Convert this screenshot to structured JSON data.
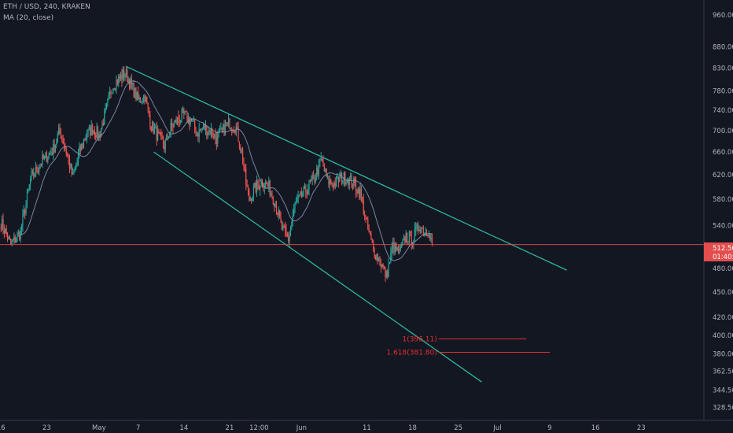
{
  "header": {
    "symbol_line": "ETH / USD, 240, KRAKEN",
    "indicator_line": "MA (20, close)"
  },
  "price_tag": {
    "price": "512.50",
    "countdown": "01:40:13"
  },
  "fib_labels": [
    "1(396.11)",
    "1.618(381.80)"
  ],
  "colors": {
    "background": "#131722",
    "up": "#26a69a",
    "down": "#ef5350",
    "ma": "#8a9bb8",
    "channel": "#2bb5a0",
    "price_line": "#e34d4d",
    "fib": "#e52e2e",
    "axis_text": "#b2b5be"
  },
  "chart_data": {
    "type": "candlestick",
    "symbol": "ETH / USD",
    "timeframe": "240",
    "exchange": "KRAKEN",
    "y_scale": "log",
    "ylim": [
      317,
      1000
    ],
    "y_ticks": [
      328.5,
      344.5,
      362.5,
      380,
      400,
      420,
      450,
      480,
      512.5,
      540,
      580,
      620,
      660,
      700,
      740,
      780,
      830,
      880,
      960
    ],
    "y_tick_labels": [
      "328.50",
      "344.50",
      "362.50",
      "380.00",
      "400.00",
      "420.00",
      "450.00",
      "480.00",
      "",
      "540.00",
      "580.00",
      "620.00",
      "660.00",
      "700.00",
      "740.00",
      "780.00",
      "830.00",
      "880.00",
      "960.00"
    ],
    "x_ticks": [
      {
        "label": "16",
        "day": -15
      },
      {
        "label": "23",
        "day": -8
      },
      {
        "label": "May",
        "day": 0
      },
      {
        "label": "7",
        "day": 6
      },
      {
        "label": "14",
        "day": 13
      },
      {
        "label": "21",
        "day": 20
      },
      {
        "label": "12:00",
        "day": 24.5
      },
      {
        "label": "Jun",
        "day": 31
      },
      {
        "label": "11",
        "day": 41
      },
      {
        "label": "18",
        "day": 48
      },
      {
        "label": "25",
        "day": 55
      },
      {
        "label": "Jul",
        "day": 61
      },
      {
        "label": "9",
        "day": 69
      },
      {
        "label": "16",
        "day": 76
      },
      {
        "label": "23",
        "day": 83
      }
    ],
    "xlim": [
      -15.15,
      92.6
    ],
    "ma_period": 20,
    "last_price": 512.5,
    "price_path": [
      [
        -15,
        545
      ],
      [
        -13.5,
        512
      ],
      [
        -12,
        530
      ],
      [
        -10.5,
        610
      ],
      [
        -9,
        640
      ],
      [
        -7,
        665
      ],
      [
        -6,
        700
      ],
      [
        -5,
        660
      ],
      [
        -4,
        615
      ],
      [
        -3,
        660
      ],
      [
        -2,
        690
      ],
      [
        -1,
        705
      ],
      [
        0,
        690
      ],
      [
        1,
        735
      ],
      [
        2,
        790
      ],
      [
        3,
        805
      ],
      [
        4,
        820
      ],
      [
        5,
        790
      ],
      [
        6,
        760
      ],
      [
        7,
        770
      ],
      [
        8,
        710
      ],
      [
        9,
        690
      ],
      [
        10,
        670
      ],
      [
        11,
        705
      ],
      [
        12,
        720
      ],
      [
        13,
        730
      ],
      [
        14,
        720
      ],
      [
        15,
        695
      ],
      [
        16,
        705
      ],
      [
        17,
        700
      ],
      [
        18,
        685
      ],
      [
        19,
        700
      ],
      [
        20,
        715
      ],
      [
        21,
        705
      ],
      [
        22,
        650
      ],
      [
        22.5,
        605
      ],
      [
        23,
        580
      ],
      [
        24,
        600
      ],
      [
        25,
        610
      ],
      [
        26,
        600
      ],
      [
        27,
        575
      ],
      [
        28,
        535
      ],
      [
        29,
        520
      ],
      [
        30,
        570
      ],
      [
        31,
        585
      ],
      [
        32,
        600
      ],
      [
        33,
        615
      ],
      [
        34,
        645
      ],
      [
        35,
        610
      ],
      [
        36,
        605
      ],
      [
        37,
        615
      ],
      [
        38,
        615
      ],
      [
        39,
        605
      ],
      [
        40,
        590
      ],
      [
        41,
        540
      ],
      [
        42,
        505
      ],
      [
        43,
        490
      ],
      [
        44,
        470
      ],
      [
        45,
        510
      ],
      [
        46,
        500
      ],
      [
        47,
        525
      ],
      [
        48,
        520
      ],
      [
        49,
        540
      ],
      [
        50,
        530
      ],
      [
        50.5,
        535
      ],
      [
        51,
        512.5
      ]
    ],
    "trendlines": [
      {
        "name": "channel-upper",
        "points": [
          [
            4.3,
            833
          ],
          [
            71.6,
            478
          ]
        ]
      },
      {
        "name": "channel-lower",
        "points": [
          [
            8.4,
            660
          ],
          [
            58.6,
            352
          ]
        ]
      },
      {
        "name": "last-price-line",
        "points": [
          [
            -15.15,
            512.5
          ],
          [
            92.6,
            512.5
          ]
        ]
      }
    ],
    "fib_levels": [
      {
        "label": "1(396.11)",
        "value": 396.11,
        "x_start": 52.0,
        "x_end": 65.4
      },
      {
        "label": "1.618(381.80)",
        "value": 381.8,
        "x_start": 52.0,
        "x_end": 69.0
      }
    ]
  }
}
